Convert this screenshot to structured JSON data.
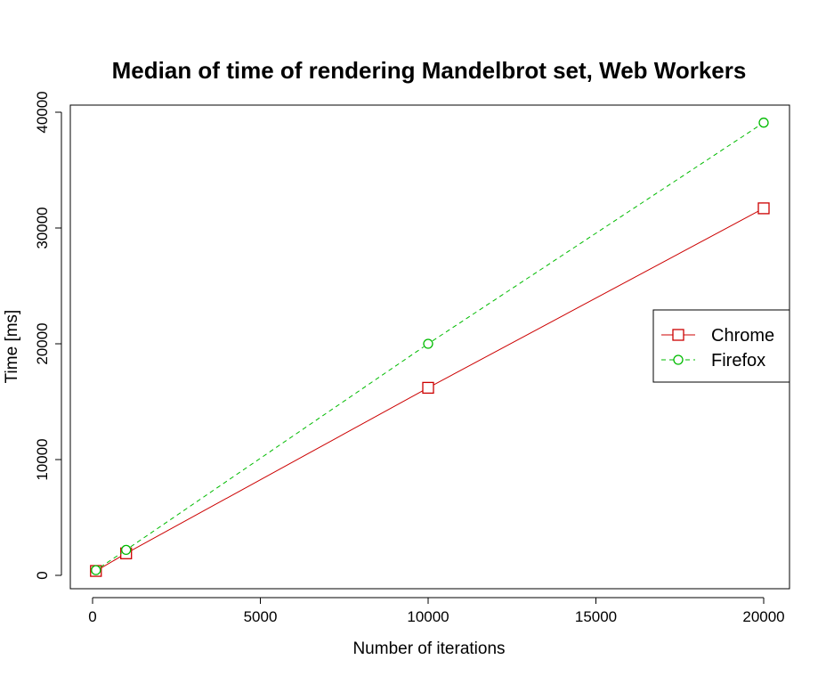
{
  "chart_data": {
    "type": "line",
    "title": "Median of time of rendering Mandelbrot set, Web Workers",
    "xlabel": "Number of iterations",
    "ylabel": "Time  [ms]",
    "xlim": [
      0,
      20000
    ],
    "ylim": [
      0,
      40000
    ],
    "x_ticks": [
      0,
      5000,
      10000,
      15000,
      20000
    ],
    "y_ticks": [
      0,
      10000,
      20000,
      30000,
      40000
    ],
    "grid": false,
    "legend_position": "right",
    "series": [
      {
        "name": "Chrome",
        "color": "#cc0000",
        "line_style": "solid",
        "marker": "square",
        "x": [
          100,
          1000,
          10000,
          20000
        ],
        "values": [
          380,
          1900,
          16200,
          31700
        ]
      },
      {
        "name": "Firefox",
        "color": "#00bb00",
        "line_style": "dashed",
        "marker": "circle",
        "x": [
          100,
          1000,
          10000,
          20000
        ],
        "values": [
          450,
          2200,
          20000,
          39100
        ]
      }
    ]
  }
}
